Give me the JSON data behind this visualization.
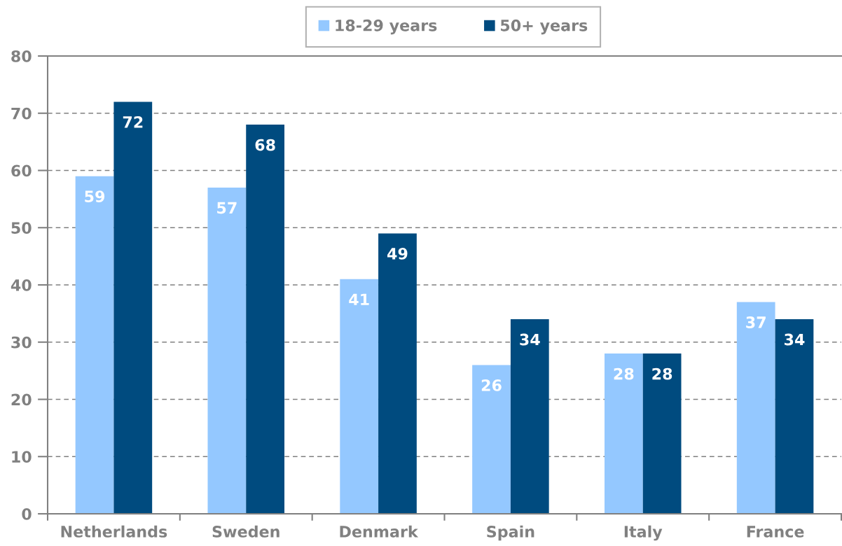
{
  "chart_data": {
    "type": "bar",
    "categories": [
      "Netherlands",
      "Sweden",
      "Denmark",
      "Spain",
      "Italy",
      "France"
    ],
    "series": [
      {
        "name": "18-29 years",
        "color": "#94c8ff",
        "values": [
          59,
          57,
          41,
          26,
          28,
          37
        ]
      },
      {
        "name": "50+ years",
        "color": "#004b7f",
        "values": [
          72,
          68,
          49,
          34,
          28,
          34
        ]
      }
    ],
    "ylim": [
      0,
      80
    ],
    "yticks": [
      0,
      10,
      20,
      30,
      40,
      50,
      60,
      70,
      80
    ],
    "grid": "y",
    "legend": "top",
    "data_labels": true
  }
}
